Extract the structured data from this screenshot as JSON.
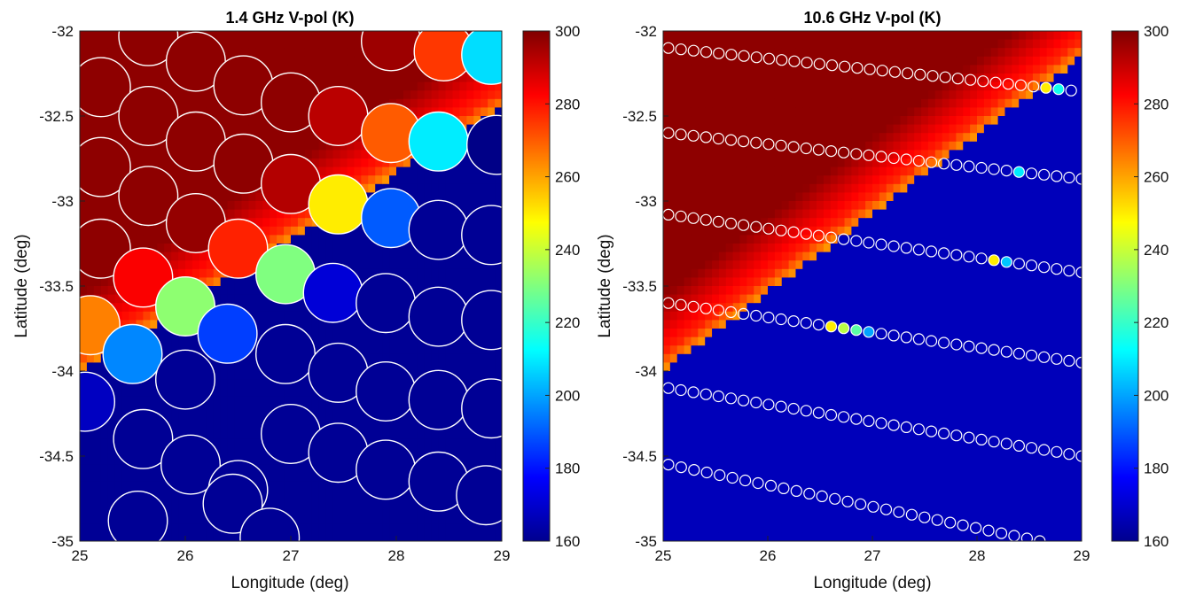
{
  "chart_data": [
    {
      "type": "heatmap",
      "title": "1.4 GHz V-pol (K)",
      "xlabel": "Longitude (deg)",
      "ylabel": "Latitude (deg)",
      "xlim": [
        25,
        29
      ],
      "ylim": [
        -35,
        -32
      ],
      "xticks": [
        "25",
        "26",
        "27",
        "28",
        "29"
      ],
      "yticks": [
        "-32",
        "-32.5",
        "-33",
        "-33.5",
        "-34",
        "-34.5",
        "-35"
      ],
      "colorbar": {
        "range": [
          160,
          300
        ],
        "ticks": [
          "300",
          "280",
          "260",
          "240",
          "220",
          "200",
          "180",
          "160"
        ],
        "colormap": "jet"
      },
      "footprint_radius_deg": 0.28,
      "footprints": [
        [
          25.65,
          -32.03,
          298
        ],
        [
          26.1,
          -32.18,
          298
        ],
        [
          26.55,
          -32.32,
          298
        ],
        [
          27.0,
          -32.42,
          298
        ],
        [
          27.45,
          -32.5,
          292
        ],
        [
          27.95,
          -32.06,
          296
        ],
        [
          28.45,
          -32.12,
          275
        ],
        [
          28.9,
          -32.14,
          208
        ],
        [
          25.2,
          -32.33,
          298
        ],
        [
          25.65,
          -32.5,
          298
        ],
        [
          26.1,
          -32.65,
          298
        ],
        [
          26.55,
          -32.78,
          298
        ],
        [
          27.0,
          -32.9,
          293
        ],
        [
          27.95,
          -32.6,
          270
        ],
        [
          28.4,
          -32.65,
          210
        ],
        [
          28.95,
          -32.67,
          161
        ],
        [
          25.2,
          -32.8,
          298
        ],
        [
          25.65,
          -32.97,
          298
        ],
        [
          26.1,
          -33.13,
          297
        ],
        [
          26.5,
          -33.28,
          278
        ],
        [
          27.45,
          -33.02,
          250
        ],
        [
          27.95,
          -33.1,
          190
        ],
        [
          28.4,
          -33.17,
          163
        ],
        [
          28.9,
          -33.2,
          163
        ],
        [
          25.2,
          -33.28,
          298
        ],
        [
          25.6,
          -33.45,
          283
        ],
        [
          26.0,
          -33.62,
          232
        ],
        [
          26.4,
          -33.78,
          186
        ],
        [
          26.95,
          -33.43,
          230
        ],
        [
          27.4,
          -33.54,
          172
        ],
        [
          27.9,
          -33.6,
          163
        ],
        [
          28.4,
          -33.68,
          163
        ],
        [
          28.9,
          -33.7,
          163
        ],
        [
          25.1,
          -33.73,
          265
        ],
        [
          25.5,
          -33.9,
          196
        ],
        [
          25.05,
          -34.18,
          169
        ],
        [
          26.0,
          -34.05,
          163
        ],
        [
          26.95,
          -33.9,
          163
        ],
        [
          27.45,
          -34.01,
          163
        ],
        [
          27.9,
          -34.12,
          163
        ],
        [
          28.4,
          -34.17,
          163
        ],
        [
          28.9,
          -34.22,
          163
        ],
        [
          25.6,
          -34.4,
          163
        ],
        [
          26.05,
          -34.55,
          163
        ],
        [
          26.5,
          -34.7,
          163
        ],
        [
          27.0,
          -34.37,
          163
        ],
        [
          27.45,
          -34.48,
          163
        ],
        [
          27.9,
          -34.58,
          163
        ],
        [
          28.4,
          -34.65,
          163
        ],
        [
          28.85,
          -34.73,
          163
        ],
        [
          25.55,
          -34.88,
          163
        ],
        [
          26.45,
          -34.78,
          163
        ],
        [
          26.8,
          -34.98,
          163
        ]
      ],
      "tb_map": {
        "coast_lat_at_29": -32.45,
        "coast_lat_at_25": -34.0,
        "land_hot": 298,
        "ocean": 163
      }
    },
    {
      "type": "heatmap",
      "title": "10.6 GHz V-pol (K)",
      "xlabel": "Longitude (deg)",
      "ylabel": "Latitude (deg)",
      "xlim": [
        25,
        29
      ],
      "ylim": [
        -35,
        -32
      ],
      "xticks": [
        "25",
        "26",
        "27",
        "28",
        "29"
      ],
      "yticks": [
        "-32",
        "-32.5",
        "-33",
        "-33.5",
        "-34",
        "-34.5",
        "-35"
      ],
      "colorbar": {
        "range": [
          160,
          300
        ],
        "ticks": [
          "300",
          "280",
          "260",
          "240",
          "220",
          "200",
          "180",
          "160"
        ],
        "colormap": "jet"
      },
      "scan_lines": [
        {
          "x0": 25.05,
          "y0": -32.1,
          "x1": 28.9,
          "y1": -32.35,
          "n": 33,
          "special": [
            [
              0,
              297
            ],
            [
              30,
              250
            ],
            [
              31,
              215
            ]
          ],
          "start_x": 26.3,
          "start_y": -32.0
        },
        {
          "x0": 25.05,
          "y0": -32.6,
          "x1": 29.0,
          "y1": -32.87,
          "n": 34,
          "special": [
            [
              28,
              210
            ]
          ]
        },
        {
          "x0": 25.05,
          "y0": -33.08,
          "x1": 29.0,
          "y1": -33.42,
          "n": 34,
          "special": [
            [
              26,
              250
            ],
            [
              27,
              205
            ]
          ]
        },
        {
          "x0": 25.05,
          "y0": -33.6,
          "x1": 29.0,
          "y1": -33.95,
          "n": 34,
          "special": [
            [
              13,
              250
            ],
            [
              14,
              238
            ],
            [
              15,
              225
            ],
            [
              16,
              200
            ]
          ]
        },
        {
          "x0": 25.05,
          "y0": -34.1,
          "x1": 29.0,
          "y1": -34.5,
          "n": 34,
          "special": []
        },
        {
          "x0": 25.05,
          "y0": -34.55,
          "x1": 28.6,
          "y1": -35.0,
          "n": 30,
          "special": [
            [
              29,
              163
            ]
          ]
        }
      ],
      "tb_map": {
        "coast_lat_at_29": -32.15,
        "coast_lat_at_25": -34.0,
        "land_hot": 298,
        "ocean": 168
      }
    }
  ]
}
